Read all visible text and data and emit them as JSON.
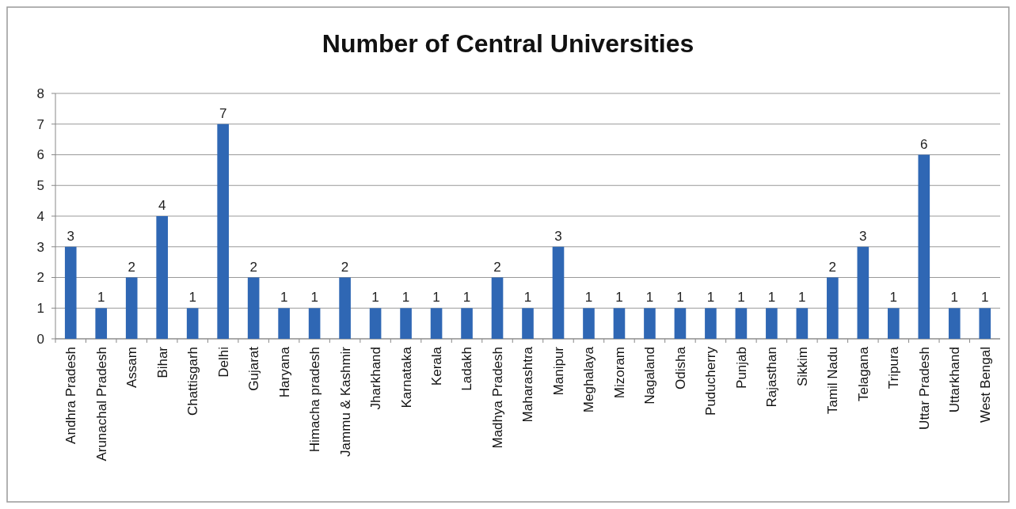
{
  "chart_data": {
    "type": "bar",
    "title": "Number of Central Universities",
    "categories": [
      "Andhra Pradesh",
      "Arunachal Pradesh",
      "Assam",
      "Bihar",
      "Chattisgarh",
      "Delhi",
      "Gujarat",
      "Haryana",
      "Himacha pradesh",
      "Jammu & Kashmir",
      "Jharkhand",
      "Karnataka",
      "Kerala",
      "Ladakh",
      "Madhya Pradesh",
      "Maharashtra",
      "Manipur",
      "Meghalaya",
      "Mizoram",
      "Nagaland",
      "Odisha",
      "Puducherry",
      "Punjab",
      "Rajasthan",
      "Sikkim",
      "Tamil Nadu",
      "Telagana",
      "Tripura",
      "Uttar Pradesh",
      "Uttarkhand",
      "West Bengal"
    ],
    "values": [
      3,
      1,
      2,
      4,
      1,
      7,
      2,
      1,
      1,
      2,
      1,
      1,
      1,
      1,
      2,
      1,
      3,
      1,
      1,
      1,
      1,
      1,
      1,
      1,
      1,
      2,
      3,
      1,
      6,
      1,
      1
    ],
    "color": "#2f67b4",
    "ylim": [
      0,
      8
    ],
    "yticks": [
      0,
      1,
      2,
      3,
      4,
      5,
      6,
      7,
      8
    ],
    "grid": "y",
    "data_labels": true
  }
}
